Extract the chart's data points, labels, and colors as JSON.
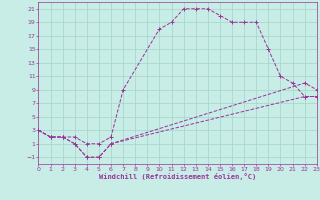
{
  "xlabel": "Windchill (Refroidissement éolien,°C)",
  "background_color": "#c8ece6",
  "grid_color": "#a8d8cc",
  "line_color": "#993399",
  "xlim": [
    0,
    23
  ],
  "ylim": [
    -2,
    22
  ],
  "xticks": [
    0,
    1,
    2,
    3,
    4,
    5,
    6,
    7,
    8,
    9,
    10,
    11,
    12,
    13,
    14,
    15,
    16,
    17,
    18,
    19,
    20,
    21,
    22,
    23
  ],
  "yticks": [
    -1,
    1,
    3,
    5,
    7,
    9,
    11,
    13,
    15,
    17,
    19,
    21
  ],
  "series": [
    {
      "x": [
        0,
        1,
        2,
        3,
        4,
        5,
        6,
        7,
        10,
        11,
        12,
        13,
        14,
        15,
        16,
        17,
        18,
        19,
        20,
        21,
        22,
        23
      ],
      "y": [
        3,
        2,
        2,
        2,
        1,
        1,
        2,
        9,
        18,
        19,
        21,
        21,
        21,
        20,
        19,
        19,
        19,
        15,
        11,
        10,
        8,
        8
      ]
    },
    {
      "x": [
        0,
        1,
        2,
        3,
        4,
        5,
        6,
        22,
        23
      ],
      "y": [
        3,
        2,
        2,
        1,
        -1,
        -1,
        1,
        10,
        9
      ]
    },
    {
      "x": [
        0,
        1,
        2,
        3,
        4,
        5,
        6,
        22,
        23
      ],
      "y": [
        3,
        2,
        2,
        1,
        -1,
        -1,
        1,
        8,
        8
      ]
    }
  ]
}
